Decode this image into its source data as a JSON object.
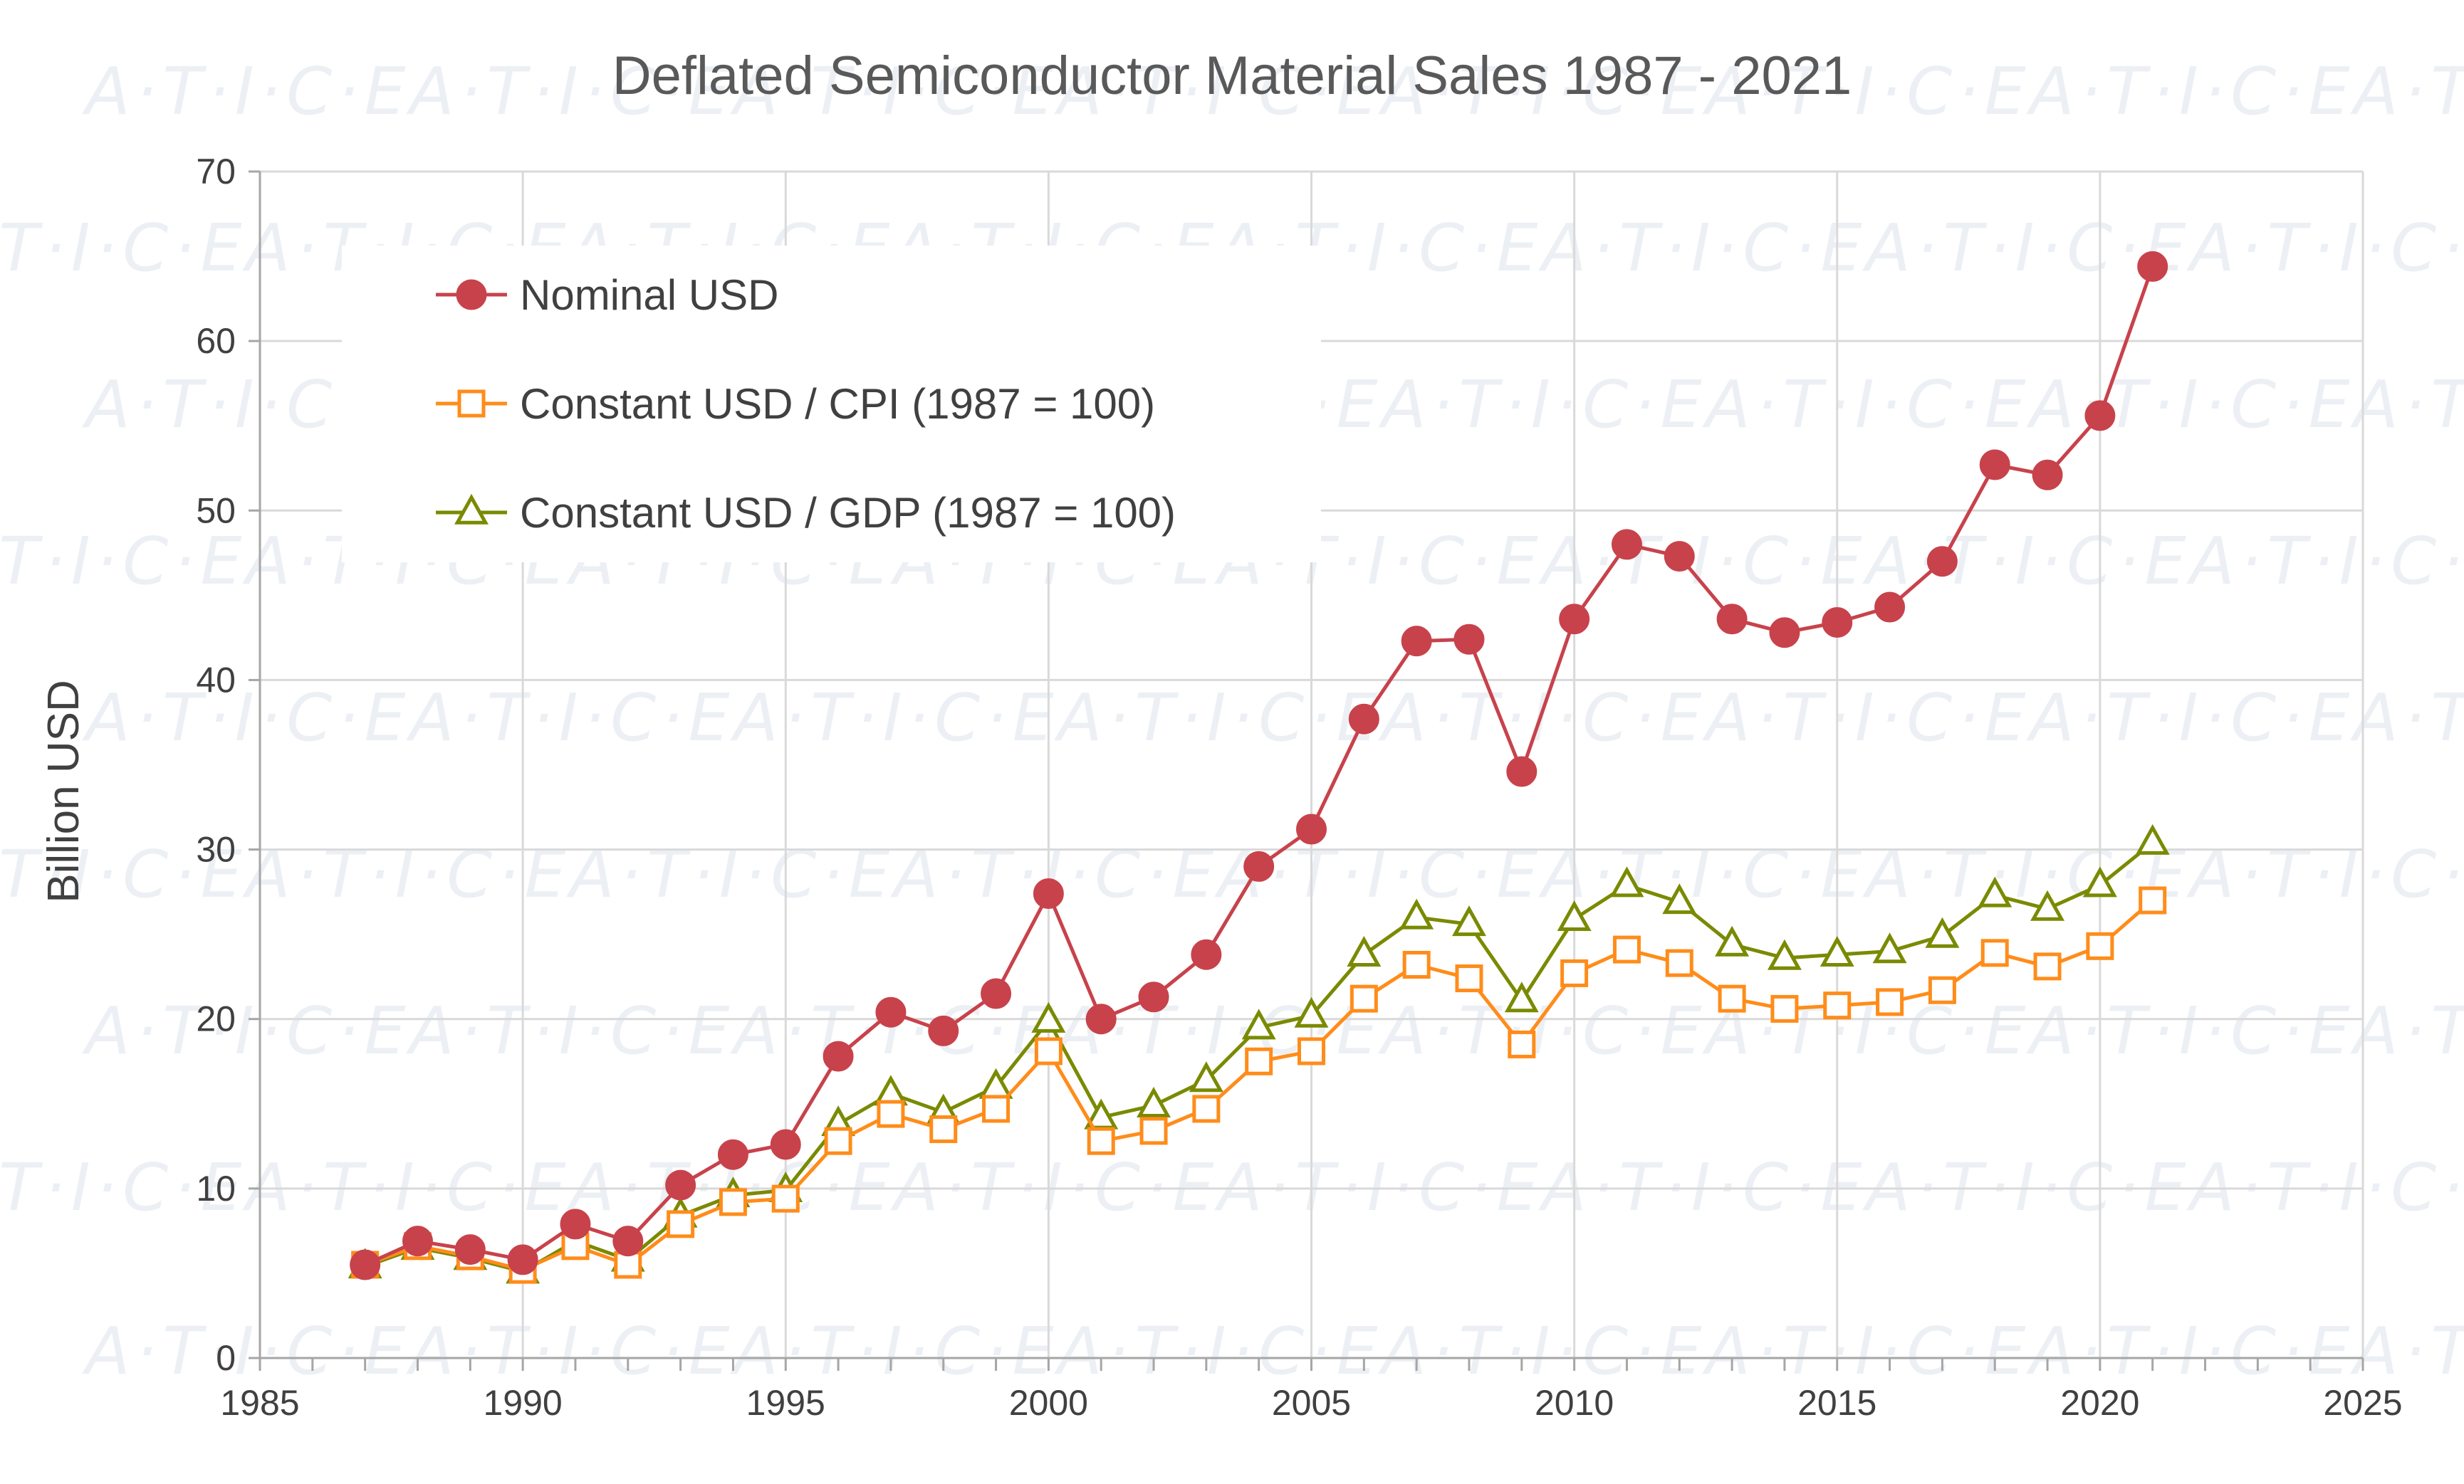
{
  "chart_data": {
    "type": "line",
    "title": "Deflated Semiconductor Material Sales 1987 - 2021",
    "xlabel": "",
    "ylabel": "Billion USD",
    "xlim": [
      1985,
      2025
    ],
    "ylim": [
      0,
      70
    ],
    "xticks": [
      "1985",
      "1990",
      "1995",
      "2000",
      "2005",
      "2010",
      "2015",
      "2020",
      "2025"
    ],
    "yticks": [
      "0",
      "10",
      "20",
      "30",
      "40",
      "50",
      "60",
      "70"
    ],
    "grid": true,
    "legend_position": "top-left",
    "watermark": "A·T·I·C·E",
    "x": [
      1987,
      1988,
      1989,
      1990,
      1991,
      1992,
      1993,
      1994,
      1995,
      1996,
      1997,
      1998,
      1999,
      2000,
      2001,
      2002,
      2003,
      2004,
      2005,
      2006,
      2007,
      2008,
      2009,
      2010,
      2011,
      2012,
      2013,
      2014,
      2015,
      2016,
      2017,
      2018,
      2019,
      2020,
      2021
    ],
    "series": [
      {
        "name": "Nominal USD",
        "color": "#c8424b",
        "marker": "circle",
        "values": [
          5.5,
          6.9,
          6.4,
          5.8,
          7.9,
          6.9,
          10.2,
          12.0,
          12.6,
          17.8,
          20.4,
          19.3,
          21.5,
          27.4,
          20.0,
          21.3,
          23.8,
          29.0,
          31.2,
          37.7,
          42.3,
          42.4,
          34.6,
          43.6,
          48.0,
          47.3,
          43.6,
          42.8,
          43.4,
          44.3,
          47.0,
          52.7,
          52.1,
          55.6,
          64.4
        ]
      },
      {
        "name": "Constant USD / CPI (1987 = 100)",
        "color": "#ff8c1a",
        "marker": "square",
        "values": [
          5.5,
          6.6,
          6.0,
          5.2,
          6.6,
          5.5,
          7.9,
          9.2,
          9.4,
          12.8,
          14.4,
          13.5,
          14.7,
          18.1,
          12.8,
          13.4,
          14.7,
          17.5,
          18.1,
          21.2,
          23.2,
          22.4,
          18.5,
          22.7,
          24.1,
          23.3,
          21.2,
          20.6,
          20.8,
          21.0,
          21.7,
          23.9,
          23.1,
          24.3,
          27.0
        ]
      },
      {
        "name": "Constant USD / GDP (1987 = 100)",
        "color": "#7a8a00",
        "marker": "triangle",
        "values": [
          5.4,
          6.5,
          5.9,
          5.1,
          6.9,
          5.8,
          8.4,
          9.6,
          9.9,
          13.8,
          15.6,
          14.5,
          16.0,
          19.9,
          14.2,
          14.9,
          16.4,
          19.5,
          20.2,
          23.8,
          26.0,
          25.6,
          21.1,
          25.9,
          27.9,
          26.9,
          24.4,
          23.6,
          23.8,
          24.0,
          24.9,
          27.3,
          26.5,
          27.9,
          30.4
        ]
      }
    ]
  }
}
